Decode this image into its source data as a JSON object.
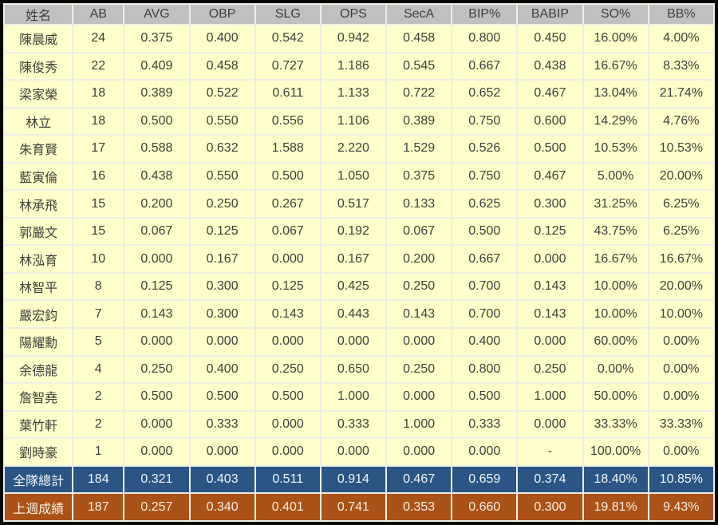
{
  "chart_data": {
    "type": "table",
    "columns": [
      "姓名",
      "AB",
      "AVG",
      "OBP",
      "SLG",
      "OPS",
      "SecA",
      "BIP%",
      "BABIP",
      "SO%",
      "BB%"
    ],
    "rows": [
      [
        "陳晨威",
        "24",
        "0.375",
        "0.400",
        "0.542",
        "0.942",
        "0.458",
        "0.800",
        "0.450",
        "16.00%",
        "4.00%"
      ],
      [
        "陳俊秀",
        "22",
        "0.409",
        "0.458",
        "0.727",
        "1.186",
        "0.545",
        "0.667",
        "0.438",
        "16.67%",
        "8.33%"
      ],
      [
        "梁家榮",
        "18",
        "0.389",
        "0.522",
        "0.611",
        "1.133",
        "0.722",
        "0.652",
        "0.467",
        "13.04%",
        "21.74%"
      ],
      [
        "林立",
        "18",
        "0.500",
        "0.550",
        "0.556",
        "1.106",
        "0.389",
        "0.750",
        "0.600",
        "14.29%",
        "4.76%"
      ],
      [
        "朱育賢",
        "17",
        "0.588",
        "0.632",
        "1.588",
        "2.220",
        "1.529",
        "0.526",
        "0.500",
        "10.53%",
        "10.53%"
      ],
      [
        "藍寅倫",
        "16",
        "0.438",
        "0.550",
        "0.500",
        "1.050",
        "0.375",
        "0.750",
        "0.467",
        "5.00%",
        "20.00%"
      ],
      [
        "林承飛",
        "15",
        "0.200",
        "0.250",
        "0.267",
        "0.517",
        "0.133",
        "0.625",
        "0.300",
        "31.25%",
        "6.25%"
      ],
      [
        "郭嚴文",
        "15",
        "0.067",
        "0.125",
        "0.067",
        "0.192",
        "0.067",
        "0.500",
        "0.125",
        "43.75%",
        "6.25%"
      ],
      [
        "林泓育",
        "10",
        "0.000",
        "0.167",
        "0.000",
        "0.167",
        "0.200",
        "0.667",
        "0.000",
        "16.67%",
        "16.67%"
      ],
      [
        "林智平",
        "8",
        "0.125",
        "0.300",
        "0.125",
        "0.425",
        "0.250",
        "0.700",
        "0.143",
        "10.00%",
        "20.00%"
      ],
      [
        "嚴宏鈞",
        "7",
        "0.143",
        "0.300",
        "0.143",
        "0.443",
        "0.143",
        "0.700",
        "0.143",
        "10.00%",
        "10.00%"
      ],
      [
        "陽耀勳",
        "5",
        "0.000",
        "0.000",
        "0.000",
        "0.000",
        "0.000",
        "0.400",
        "0.000",
        "60.00%",
        "0.00%"
      ],
      [
        "余德龍",
        "4",
        "0.250",
        "0.400",
        "0.250",
        "0.650",
        "0.250",
        "0.800",
        "0.250",
        "0.00%",
        "0.00%"
      ],
      [
        "詹智堯",
        "2",
        "0.500",
        "0.500",
        "0.500",
        "1.000",
        "0.000",
        "0.500",
        "1.000",
        "50.00%",
        "0.00%"
      ],
      [
        "葉竹軒",
        "2",
        "0.000",
        "0.333",
        "0.000",
        "0.333",
        "1.000",
        "0.333",
        "0.000",
        "33.33%",
        "33.33%"
      ],
      [
        "劉時豪",
        "1",
        "0.000",
        "0.000",
        "0.000",
        "0.000",
        "0.000",
        "0.000",
        "-",
        "100.00%",
        "0.00%"
      ]
    ],
    "summary_rows": [
      {
        "style": "team-total",
        "cells": [
          "全隊總計",
          "184",
          "0.321",
          "0.403",
          "0.511",
          "0.914",
          "0.467",
          "0.659",
          "0.374",
          "18.40%",
          "10.85%"
        ]
      },
      {
        "style": "last-week",
        "cells": [
          "上週成績",
          "187",
          "0.257",
          "0.340",
          "0.401",
          "0.741",
          "0.353",
          "0.660",
          "0.300",
          "19.81%",
          "9.43%"
        ]
      }
    ],
    "layout": {
      "grid": "on",
      "header_position": "top",
      "summary_position": "bottom"
    }
  },
  "colors": {
    "header_bg": "#C0C0C0",
    "header_text": "#3F3F3F",
    "row_bg": "#FFFFCB",
    "row_text": "#3F3F3C",
    "team_total_bg": "#2A5585",
    "team_total_text": "#F4F6F8",
    "last_week_bg": "#AA5217",
    "last_week_text": "#F7EFE2",
    "grid": "#EFEEE6",
    "frame": "#060606"
  }
}
